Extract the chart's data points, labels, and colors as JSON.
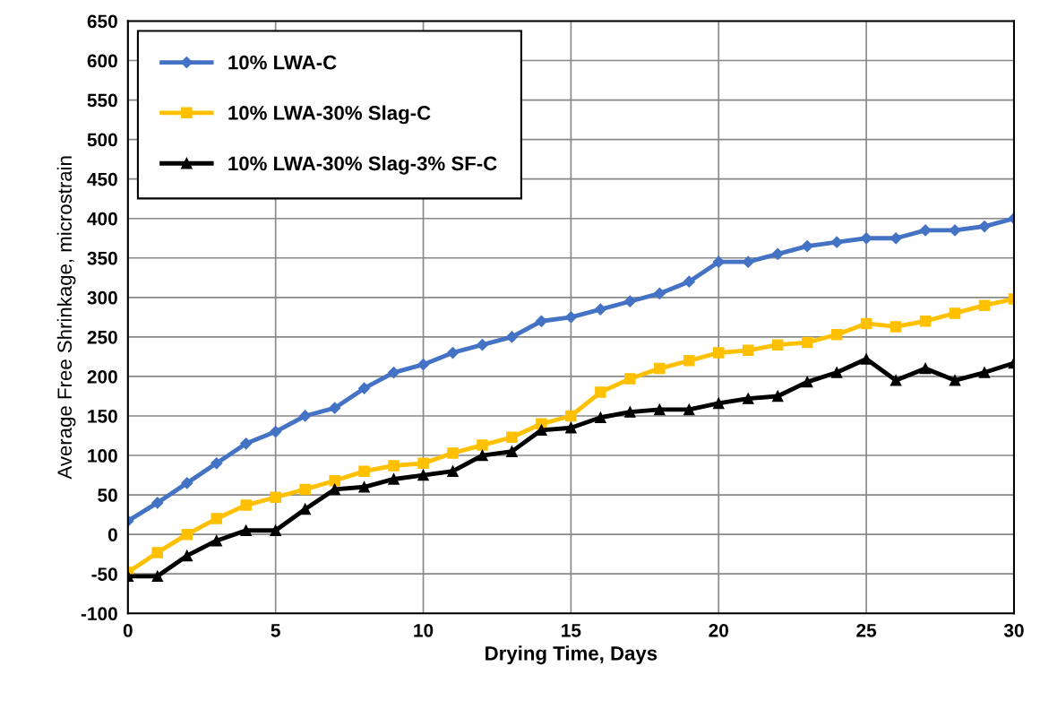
{
  "chart_data": {
    "type": "line",
    "xlabel": "Drying Time, Days",
    "ylabel": "Average Free Shrinkage, microstrain",
    "x": [
      0,
      1,
      2,
      3,
      4,
      5,
      6,
      7,
      8,
      9,
      10,
      11,
      12,
      13,
      14,
      15,
      16,
      17,
      18,
      19,
      20,
      21,
      22,
      23,
      24,
      25,
      26,
      27,
      28,
      29,
      30
    ],
    "series": [
      {
        "name": "10% LWA-C",
        "color": "#4472c4",
        "marker": "diamond",
        "values": [
          17,
          40,
          65,
          90,
          115,
          130,
          150,
          160,
          185,
          205,
          215,
          230,
          240,
          250,
          270,
          275,
          285,
          295,
          305,
          320,
          345,
          345,
          355,
          365,
          370,
          375,
          375,
          385,
          385,
          390,
          400
        ]
      },
      {
        "name": "10% LWA-30% Slag-C",
        "color": "#ffc000",
        "marker": "square",
        "values": [
          -48,
          -23,
          0,
          20,
          37,
          47,
          57,
          68,
          80,
          87,
          90,
          103,
          113,
          123,
          140,
          150,
          180,
          197,
          210,
          220,
          230,
          233,
          240,
          243,
          253,
          267,
          263,
          270,
          280,
          290,
          298
        ]
      },
      {
        "name": "10% LWA-30% Slag-3% SF-C",
        "color": "#000000",
        "marker": "triangle",
        "values": [
          -53,
          -53,
          -27,
          -8,
          5,
          5,
          32,
          57,
          60,
          70,
          75,
          80,
          100,
          105,
          132,
          135,
          148,
          155,
          158,
          158,
          166,
          172,
          175,
          193,
          205,
          222,
          195,
          210,
          195,
          205,
          217
        ]
      }
    ],
    "xlim": [
      0,
      30
    ],
    "xticks": [
      0,
      5,
      10,
      15,
      20,
      25,
      30
    ],
    "ylim": [
      -100,
      650
    ],
    "yticks": [
      -100,
      -50,
      0,
      50,
      100,
      150,
      200,
      250,
      300,
      350,
      400,
      450,
      500,
      550,
      600,
      650
    ],
    "grid": true,
    "legend": "top left",
    "line_style": "solid"
  }
}
